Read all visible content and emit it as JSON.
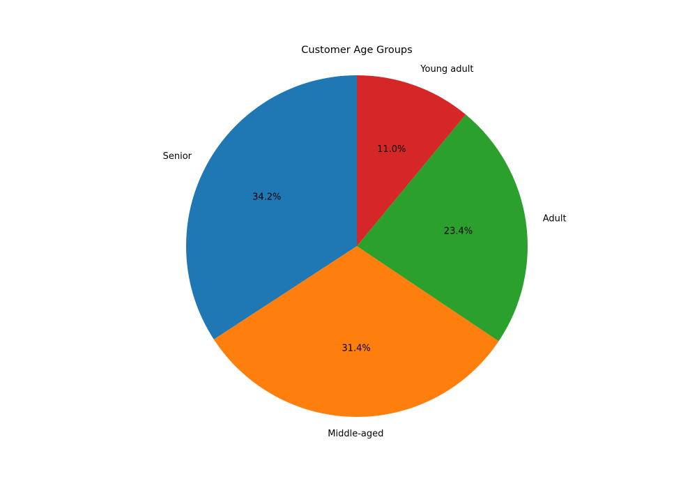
{
  "chart_data": {
    "type": "pie",
    "title": "Customer Age Groups",
    "start_angle_deg": 90,
    "direction": "counterclockwise",
    "slices": [
      {
        "label": "Senior",
        "value": 34.2,
        "display": "34.2%",
        "color": "#1f77b4"
      },
      {
        "label": "Middle-aged",
        "value": 31.4,
        "display": "31.4%",
        "color": "#ff7f0e"
      },
      {
        "label": "Adult",
        "value": 23.4,
        "display": "23.4%",
        "color": "#2ca02c"
      },
      {
        "label": "Young adult",
        "value": 11.0,
        "display": "11.0%",
        "color": "#d62728"
      }
    ]
  }
}
